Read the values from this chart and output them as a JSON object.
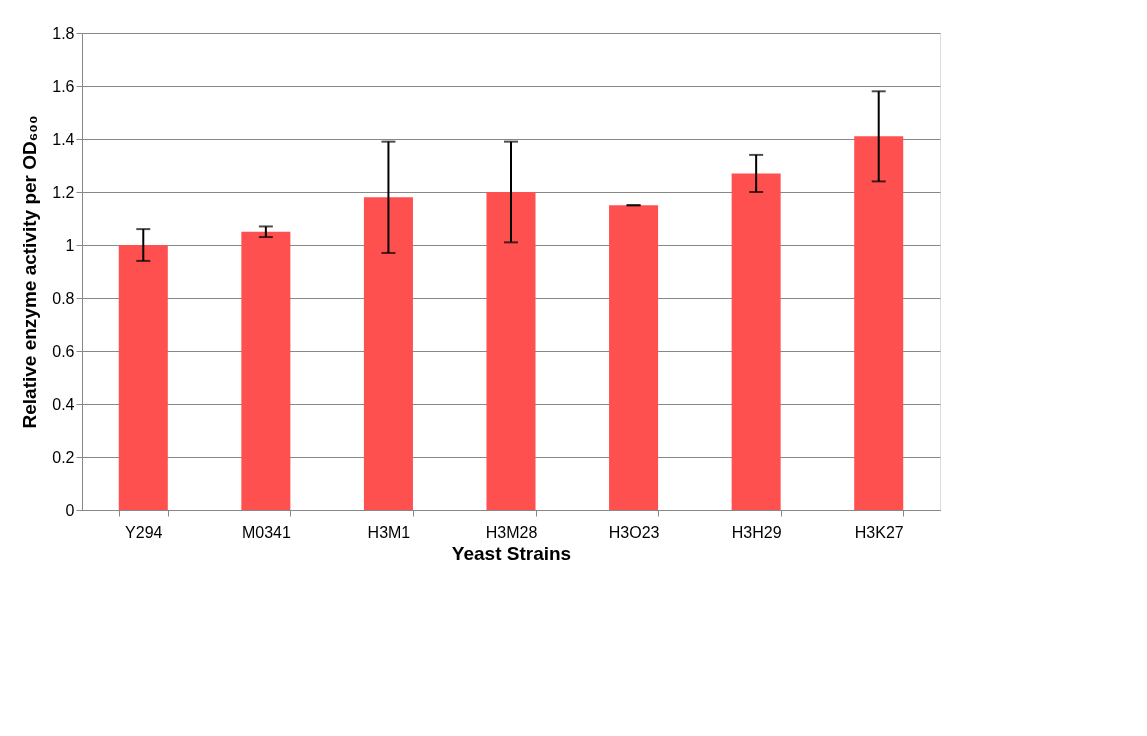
{
  "chart_data": {
    "type": "bar",
    "xlabel": "Yeast Strains",
    "ylabel": "Relative enzyme activity per OD₆₀₀",
    "categories": [
      "Y294",
      "M0341",
      "H3M1",
      "H3M28",
      "H3O23",
      "H3H29",
      "H3K27"
    ],
    "values": [
      1.0,
      1.05,
      1.18,
      1.2,
      1.15,
      1.27,
      1.41
    ],
    "errors": [
      0.06,
      0.02,
      0.21,
      0.19,
      0.0,
      0.07,
      0.17
    ],
    "color": "#ff5050",
    "ylim": [
      0,
      1.8
    ],
    "yticks": [
      0,
      0.2,
      0.4,
      0.6,
      0.8,
      1,
      1.2,
      1.4,
      1.6,
      1.8
    ],
    "grid": "y"
  }
}
